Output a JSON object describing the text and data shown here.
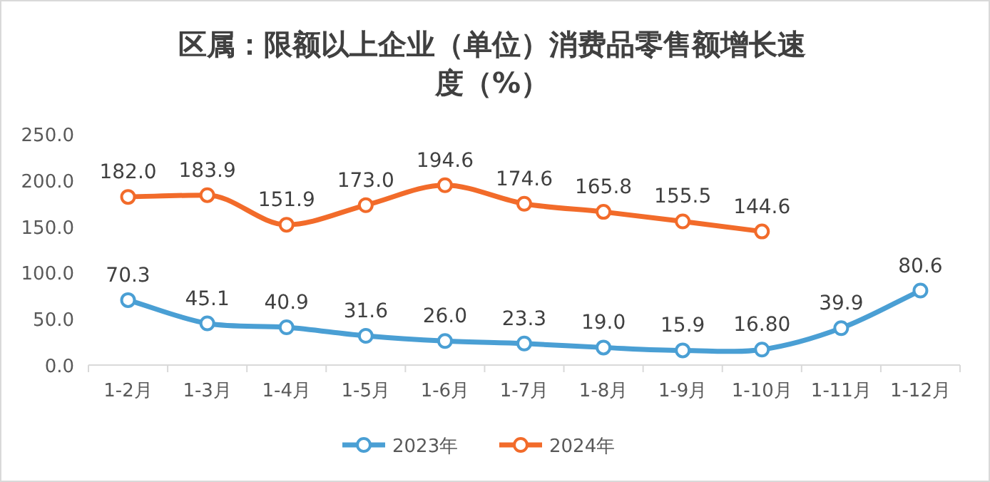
{
  "chart_data": {
    "type": "line",
    "title": "区属：限额以上企业（单位）消费品零售额增长速度（%）",
    "categories": [
      "1-2月",
      "1-3月",
      "1-4月",
      "1-5月",
      "1-6月",
      "1-7月",
      "1-8月",
      "1-9月",
      "1-10月",
      "1-11月",
      "1-12月"
    ],
    "series": [
      {
        "name": "2023年",
        "color": "#4a9fd4",
        "values": [
          70.3,
          45.1,
          40.9,
          31.6,
          26.0,
          23.3,
          19.0,
          15.9,
          16.8,
          39.9,
          80.6
        ],
        "value_labels": [
          "70.3",
          "45.1",
          "40.9",
          "31.6",
          "26.0",
          "23.3",
          "19.0",
          "15.9",
          "16.80",
          "39.9",
          "80.6"
        ]
      },
      {
        "name": "2024年",
        "color": "#f26b2a",
        "values": [
          182.0,
          183.9,
          151.9,
          173.0,
          194.6,
          174.6,
          165.8,
          155.5,
          144.6,
          null,
          null
        ],
        "value_labels": [
          "182.0",
          "183.9",
          "151.9",
          "173.0",
          "194.6",
          "174.6",
          "165.8",
          "155.5",
          "144.6",
          null,
          null
        ]
      }
    ],
    "ylim": [
      0,
      250
    ],
    "yticks": [
      {
        "value": 0,
        "label": "0.0"
      },
      {
        "value": 50,
        "label": "50.0"
      },
      {
        "value": 100,
        "label": "100.0"
      },
      {
        "value": 150,
        "label": "150.0"
      },
      {
        "value": 200,
        "label": "200.0"
      },
      {
        "value": 250,
        "label": "250.0"
      }
    ],
    "legend": "bottom",
    "marker": "circle"
  }
}
